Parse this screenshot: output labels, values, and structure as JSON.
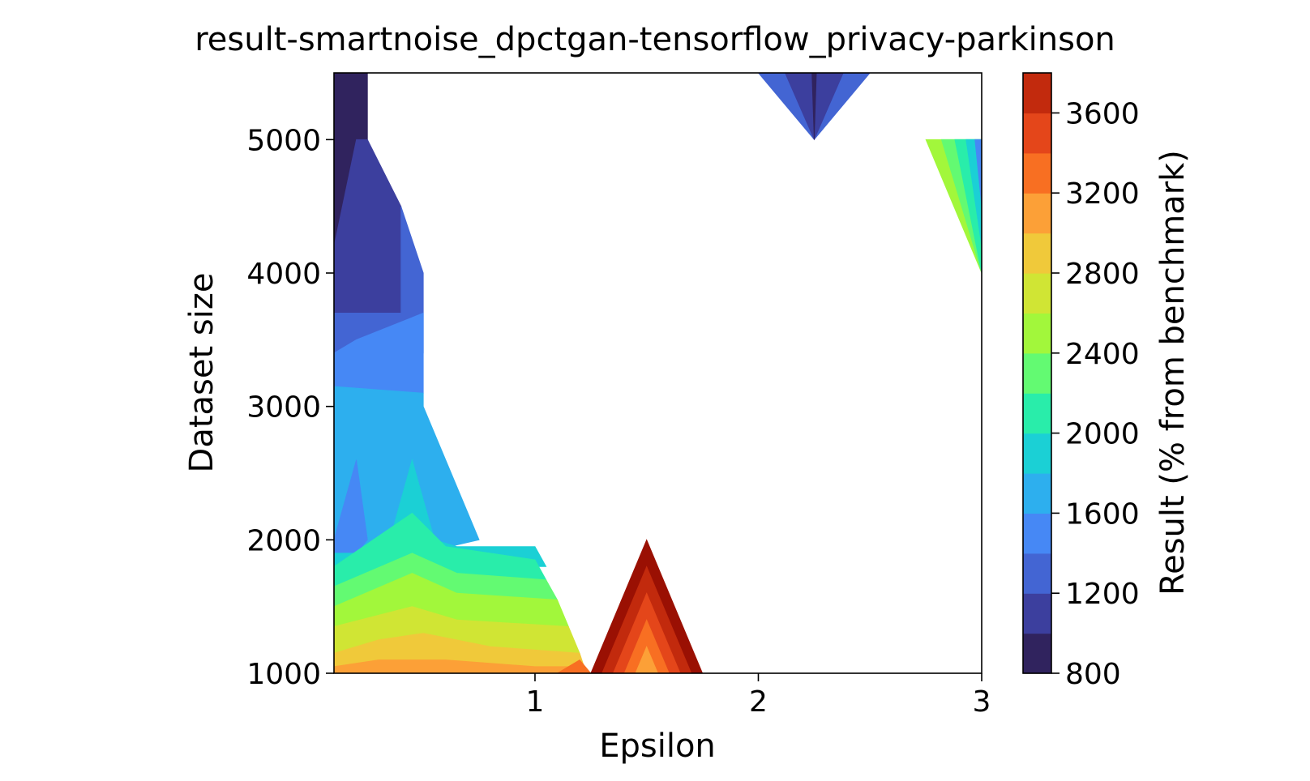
{
  "chart_data": {
    "type": "heatmap",
    "subtype": "filled-contour",
    "title": "result-smartnoise_dpctgan-tensorflow_privacy-parkinson",
    "xlabel": "Epsilon",
    "ylabel": "Dataset size",
    "xlim": [
      0.1,
      3.0
    ],
    "ylim": [
      1000,
      5500
    ],
    "x_ticks": [
      {
        "value": 1,
        "label": "1"
      },
      {
        "value": 2,
        "label": "2"
      },
      {
        "value": 3,
        "label": "3"
      }
    ],
    "y_ticks": [
      {
        "value": 1000,
        "label": "1000"
      },
      {
        "value": 2000,
        "label": "2000"
      },
      {
        "value": 3000,
        "label": "3000"
      },
      {
        "value": 4000,
        "label": "4000"
      },
      {
        "value": 5000,
        "label": "5000"
      }
    ],
    "grid": false,
    "colorbar": {
      "label": "Result (% from benchmark)",
      "colormap": "turbo",
      "levels": [
        800,
        1000,
        1200,
        1400,
        1600,
        1800,
        2000,
        2200,
        2400,
        2600,
        2800,
        3000,
        3200,
        3400,
        3600,
        3800
      ],
      "colors": [
        "#30235e",
        "#3c3f9e",
        "#4365d3",
        "#4688f5",
        "#2dafee",
        "#1bd0d5",
        "#29edaa",
        "#63fa72",
        "#a2f73b",
        "#d0e534",
        "#f0c93a",
        "#fca037",
        "#f86f22",
        "#e4461a",
        "#c22a0d",
        "#9a1003"
      ],
      "tick_values": [
        800,
        1200,
        1600,
        2000,
        2400,
        2800,
        3200,
        3600
      ],
      "tick_labels": [
        "800",
        "1200",
        "1600",
        "2000",
        "2400",
        "2800",
        "3200",
        "3600"
      ]
    },
    "regions": [
      {
        "level": 0,
        "points": [
          [
            0.1,
            5500
          ],
          [
            0.25,
            5500
          ],
          [
            0.25,
            5000
          ],
          [
            0.12,
            4000
          ],
          [
            0.1,
            4000
          ]
        ]
      },
      {
        "level": 1,
        "points": [
          [
            0.1,
            4200
          ],
          [
            0.2,
            5000
          ],
          [
            0.25,
            5000
          ],
          [
            0.4,
            4500
          ],
          [
            0.4,
            3700
          ],
          [
            0.1,
            3700
          ]
        ]
      },
      {
        "level": 2,
        "points": [
          [
            0.1,
            3700
          ],
          [
            0.4,
            3700
          ],
          [
            0.4,
            4500
          ],
          [
            0.5,
            4000
          ],
          [
            0.5,
            3400
          ],
          [
            0.1,
            3400
          ]
        ]
      },
      {
        "level": 3,
        "points": [
          [
            0.1,
            3400
          ],
          [
            0.2,
            3500
          ],
          [
            0.5,
            3700
          ],
          [
            0.5,
            3100
          ],
          [
            0.1,
            3150
          ]
        ]
      },
      {
        "level": 4,
        "points": [
          [
            0.1,
            3150
          ],
          [
            0.5,
            3100
          ],
          [
            0.5,
            3000
          ],
          [
            0.75,
            2000
          ],
          [
            0.1,
            1750
          ]
        ]
      },
      {
        "level": 3,
        "points": [
          [
            0.1,
            2000
          ],
          [
            0.2,
            2600
          ],
          [
            0.25,
            2000
          ],
          [
            0.2,
            1900
          ],
          [
            0.1,
            1900
          ]
        ]
      },
      {
        "level": 5,
        "points": [
          [
            0.1,
            1900
          ],
          [
            0.2,
            1900
          ],
          [
            0.35,
            2000
          ],
          [
            0.45,
            2600
          ],
          [
            0.55,
            2000
          ],
          [
            0.65,
            1950
          ],
          [
            0.75,
            1950
          ],
          [
            1.0,
            1950
          ],
          [
            1.05,
            1800
          ],
          [
            0.1,
            1800
          ]
        ]
      },
      {
        "level": 6,
        "points": [
          [
            0.1,
            1800
          ],
          [
            0.45,
            2200
          ],
          [
            0.6,
            1950
          ],
          [
            1.0,
            1850
          ],
          [
            1.05,
            1700
          ],
          [
            0.1,
            1650
          ]
        ]
      },
      {
        "level": 7,
        "points": [
          [
            0.1,
            1650
          ],
          [
            0.45,
            1900
          ],
          [
            0.65,
            1750
          ],
          [
            1.05,
            1700
          ],
          [
            1.1,
            1550
          ],
          [
            0.1,
            1500
          ]
        ]
      },
      {
        "level": 8,
        "points": [
          [
            0.1,
            1500
          ],
          [
            0.45,
            1750
          ],
          [
            0.65,
            1600
          ],
          [
            1.1,
            1550
          ],
          [
            1.15,
            1350
          ],
          [
            0.1,
            1350
          ]
        ]
      },
      {
        "level": 9,
        "points": [
          [
            0.1,
            1350
          ],
          [
            0.45,
            1500
          ],
          [
            0.65,
            1400
          ],
          [
            1.15,
            1350
          ],
          [
            1.2,
            1150
          ],
          [
            0.1,
            1150
          ]
        ]
      },
      {
        "level": 10,
        "points": [
          [
            0.1,
            1150
          ],
          [
            0.3,
            1250
          ],
          [
            0.5,
            1300
          ],
          [
            0.8,
            1200
          ],
          [
            1.2,
            1150
          ],
          [
            1.22,
            1050
          ],
          [
            0.1,
            1050
          ]
        ]
      },
      {
        "level": 11,
        "points": [
          [
            0.1,
            1050
          ],
          [
            0.3,
            1100
          ],
          [
            0.6,
            1100
          ],
          [
            1.0,
            1050
          ],
          [
            1.22,
            1050
          ],
          [
            1.25,
            1000
          ],
          [
            0.1,
            1000
          ]
        ]
      },
      {
        "level": 12,
        "points": [
          [
            1.1,
            1000
          ],
          [
            1.2,
            1100
          ],
          [
            1.25,
            1000
          ]
        ]
      },
      {
        "level": 15,
        "points": [
          [
            1.25,
            1000
          ],
          [
            1.5,
            2000
          ],
          [
            1.75,
            1000
          ]
        ]
      },
      {
        "level": 14,
        "points": [
          [
            1.3,
            1000
          ],
          [
            1.5,
            1800
          ],
          [
            1.7,
            1000
          ]
        ]
      },
      {
        "level": 13,
        "points": [
          [
            1.35,
            1000
          ],
          [
            1.5,
            1600
          ],
          [
            1.65,
            1000
          ]
        ]
      },
      {
        "level": 12,
        "points": [
          [
            1.4,
            1000
          ],
          [
            1.5,
            1400
          ],
          [
            1.6,
            1000
          ]
        ]
      },
      {
        "level": 11,
        "points": [
          [
            1.45,
            1000
          ],
          [
            1.5,
            1200
          ],
          [
            1.55,
            1000
          ]
        ]
      },
      {
        "level": 2,
        "points": [
          [
            2.0,
            5500
          ],
          [
            2.5,
            5500
          ],
          [
            2.25,
            5000
          ]
        ]
      },
      {
        "level": 1,
        "points": [
          [
            2.12,
            5500
          ],
          [
            2.38,
            5500
          ],
          [
            2.25,
            5000
          ]
        ]
      },
      {
        "level": 0,
        "points": [
          [
            2.24,
            5500
          ],
          [
            2.26,
            5500
          ],
          [
            2.25,
            5000
          ]
        ]
      },
      {
        "level": 8,
        "points": [
          [
            2.75,
            5000
          ],
          [
            3.0,
            5000
          ],
          [
            3.0,
            4000
          ]
        ]
      },
      {
        "level": 7,
        "points": [
          [
            2.82,
            5000
          ],
          [
            3.0,
            5000
          ],
          [
            3.0,
            4000
          ]
        ]
      },
      {
        "level": 6,
        "points": [
          [
            2.88,
            5000
          ],
          [
            3.0,
            5000
          ],
          [
            3.0,
            4000
          ]
        ]
      },
      {
        "level": 5,
        "points": [
          [
            2.93,
            5000
          ],
          [
            3.0,
            5000
          ],
          [
            3.0,
            4200
          ]
        ]
      },
      {
        "level": 3,
        "points": [
          [
            2.97,
            5000
          ],
          [
            3.0,
            5000
          ],
          [
            3.0,
            4500
          ]
        ]
      }
    ]
  }
}
